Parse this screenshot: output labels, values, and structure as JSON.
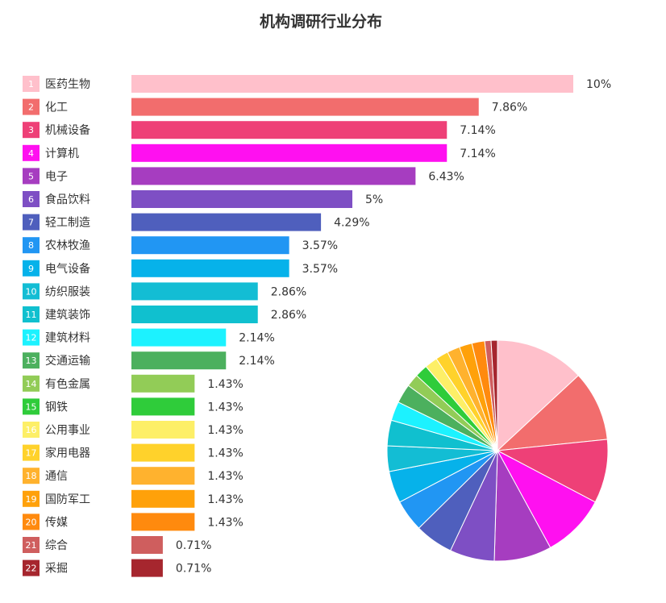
{
  "chart_data": {
    "type": "bar",
    "title": "机构调研行业分布",
    "xlabel": "",
    "ylabel": "",
    "xlim": [
      0,
      10
    ],
    "unit": "%",
    "grid": false,
    "legend": "none",
    "categories": [
      {
        "rank": "1",
        "name": "医药生物",
        "value": 10,
        "label": "10%",
        "color": "#FFC0CB"
      },
      {
        "rank": "2",
        "name": "化工",
        "value": 7.86,
        "label": "7.86%",
        "color": "#F26D6D"
      },
      {
        "rank": "3",
        "name": "机械设备",
        "value": 7.14,
        "label": "7.14%",
        "color": "#EE4077"
      },
      {
        "rank": "4",
        "name": "计算机",
        "value": 7.14,
        "label": "7.14%",
        "color": "#FF10F0"
      },
      {
        "rank": "5",
        "name": "电子",
        "value": 6.43,
        "label": "6.43%",
        "color": "#A63DC0"
      },
      {
        "rank": "6",
        "name": "食品饮料",
        "value": 5,
        "label": "5%",
        "color": "#7E4FC4"
      },
      {
        "rank": "7",
        "name": "轻工制造",
        "value": 4.29,
        "label": "4.29%",
        "color": "#4F5FBD"
      },
      {
        "rank": "8",
        "name": "农林牧渔",
        "value": 3.57,
        "label": "3.57%",
        "color": "#2196F3"
      },
      {
        "rank": "9",
        "name": "电气设备",
        "value": 3.57,
        "label": "3.57%",
        "color": "#06B2EA"
      },
      {
        "rank": "10",
        "name": "纺织服装",
        "value": 2.86,
        "label": "2.86%",
        "color": "#13BDD4"
      },
      {
        "rank": "11",
        "name": "建筑装饰",
        "value": 2.86,
        "label": "2.86%",
        "color": "#10C0CF"
      },
      {
        "rank": "12",
        "name": "建筑材料",
        "value": 2.14,
        "label": "2.14%",
        "color": "#1CF2FF"
      },
      {
        "rank": "13",
        "name": "交通运输",
        "value": 2.14,
        "label": "2.14%",
        "color": "#4CB05E"
      },
      {
        "rank": "14",
        "name": "有色金属",
        "value": 1.43,
        "label": "1.43%",
        "color": "#92CC57"
      },
      {
        "rank": "15",
        "name": "钢铁",
        "value": 1.43,
        "label": "1.43%",
        "color": "#2FCC3A"
      },
      {
        "rank": "16",
        "name": "公用事业",
        "value": 1.43,
        "label": "1.43%",
        "color": "#FDEF67"
      },
      {
        "rank": "17",
        "name": "家用电器",
        "value": 1.43,
        "label": "1.43%",
        "color": "#FFD22B"
      },
      {
        "rank": "18",
        "name": "通信",
        "value": 1.43,
        "label": "1.43%",
        "color": "#FFB22E"
      },
      {
        "rank": "19",
        "name": "国防军工",
        "value": 1.43,
        "label": "1.43%",
        "color": "#FFA10A"
      },
      {
        "rank": "20",
        "name": "传媒",
        "value": 1.43,
        "label": "1.43%",
        "color": "#FF8A0E"
      },
      {
        "rank": "21",
        "name": "综合",
        "value": 0.71,
        "label": "0.71%",
        "color": "#CF5E5E"
      },
      {
        "rank": "22",
        "name": "采掘",
        "value": 0.71,
        "label": "0.71%",
        "color": "#A6262E"
      }
    ],
    "pie": {
      "type": "pie",
      "slices_same_as_bars": true
    }
  }
}
